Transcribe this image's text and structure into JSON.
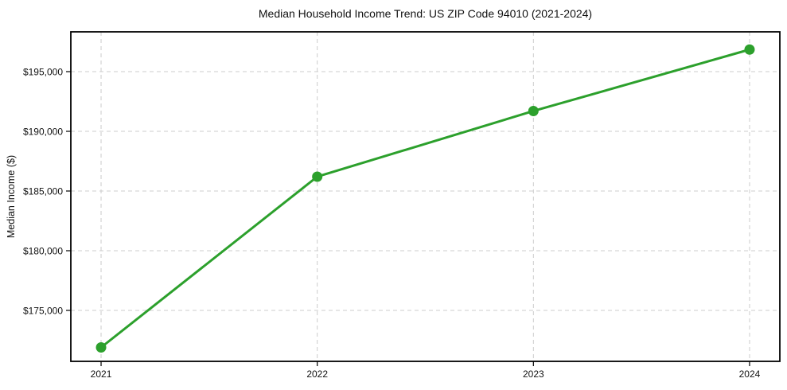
{
  "chart_data": {
    "type": "line",
    "title": "Median Household Income Trend: US ZIP Code 94010 (2021-2024)",
    "xlabel": "",
    "ylabel": "Median Income ($)",
    "x": [
      2021,
      2022,
      2023,
      2024
    ],
    "values": [
      171900,
      186200,
      191700,
      196850
    ],
    "x_tick_labels": [
      "2021",
      "2022",
      "2023",
      "2024"
    ],
    "y_ticks": [
      {
        "value": 175000,
        "label": "$175,000"
      },
      {
        "value": 180000,
        "label": "$180,000"
      },
      {
        "value": 185000,
        "label": "$185,000"
      },
      {
        "value": 190000,
        "label": "$190,000"
      },
      {
        "value": 195000,
        "label": "$195,000"
      }
    ],
    "xlim": [
      2020.86,
      2024.14
    ],
    "ylim": [
      170733,
      198333
    ],
    "grid": true,
    "grid_style": "dashed",
    "legend": "none",
    "colors": {
      "line": "#2ca02c",
      "marker": "#2ca02c",
      "grid": "#cccccc",
      "axis": "#000000",
      "text": "#111111",
      "background": "#ffffff"
    }
  }
}
